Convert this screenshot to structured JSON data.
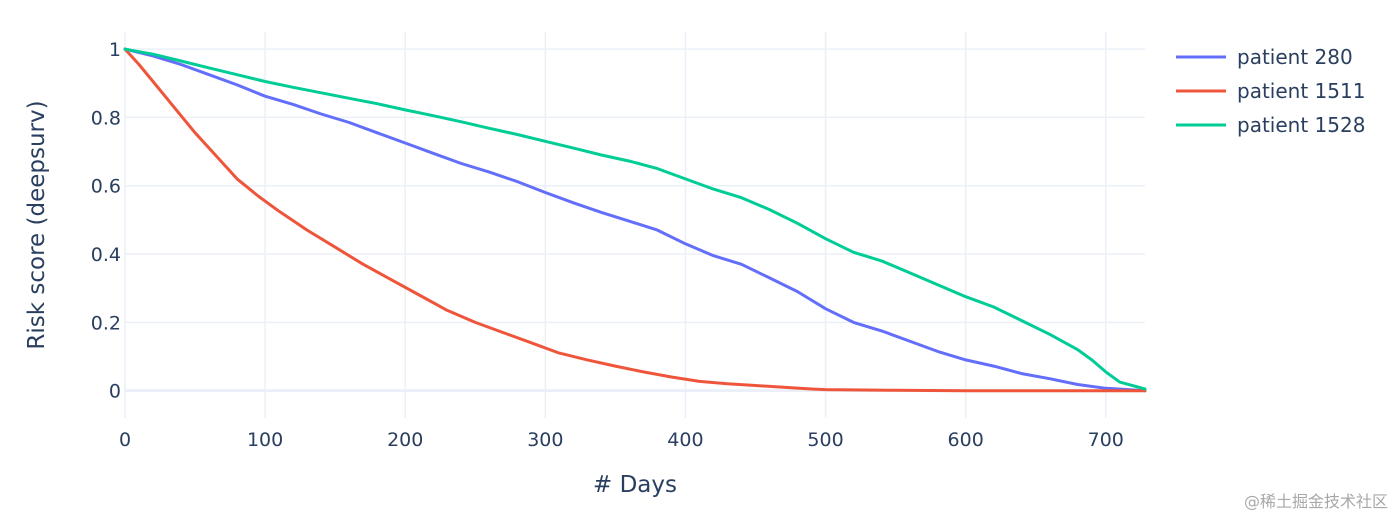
{
  "chart_data": {
    "type": "line",
    "xlabel": "# Days",
    "ylabel": "Risk score (deepsurv)",
    "xlim": [
      0,
      728
    ],
    "ylim": [
      -0.08,
      1.05
    ],
    "x_ticks": [
      0,
      100,
      200,
      300,
      400,
      500,
      600,
      700
    ],
    "y_ticks": [
      0,
      0.2,
      0.4,
      0.6,
      0.8,
      1
    ],
    "y_tick_labels": [
      "0",
      "0.2",
      "0.4",
      "0.6",
      "0.8",
      "1"
    ],
    "grid": true,
    "legend_position": "top-right",
    "series": [
      {
        "name": "patient 280",
        "color": "#636efa",
        "x": [
          0,
          20,
          40,
          60,
          80,
          100,
          120,
          140,
          160,
          180,
          200,
          220,
          240,
          260,
          280,
          300,
          320,
          340,
          360,
          380,
          400,
          420,
          440,
          460,
          480,
          500,
          520,
          540,
          560,
          580,
          600,
          620,
          640,
          660,
          680,
          700,
          728
        ],
        "y": [
          1.0,
          0.98,
          0.955,
          0.925,
          0.895,
          0.862,
          0.838,
          0.81,
          0.785,
          0.755,
          0.725,
          0.695,
          0.665,
          0.64,
          0.612,
          0.58,
          0.55,
          0.522,
          0.496,
          0.47,
          0.43,
          0.395,
          0.37,
          0.33,
          0.29,
          0.24,
          0.2,
          0.175,
          0.145,
          0.115,
          0.09,
          0.072,
          0.05,
          0.035,
          0.018,
          0.007,
          0.0
        ]
      },
      {
        "name": "patient 1511",
        "color": "#ef553b",
        "x": [
          0,
          10,
          20,
          30,
          40,
          50,
          60,
          70,
          80,
          95,
          110,
          130,
          150,
          170,
          190,
          210,
          230,
          250,
          270,
          290,
          310,
          330,
          350,
          370,
          390,
          410,
          430,
          450,
          470,
          490,
          500,
          550,
          600,
          650,
          728
        ],
        "y": [
          1.0,
          0.955,
          0.905,
          0.855,
          0.805,
          0.755,
          0.71,
          0.665,
          0.62,
          0.57,
          0.525,
          0.47,
          0.42,
          0.37,
          0.325,
          0.28,
          0.235,
          0.2,
          0.17,
          0.14,
          0.11,
          0.09,
          0.072,
          0.055,
          0.04,
          0.027,
          0.02,
          0.015,
          0.01,
          0.005,
          0.003,
          0.001,
          0.0,
          0.0,
          0.0
        ]
      },
      {
        "name": "patient 1528",
        "color": "#00cc96",
        "x": [
          0,
          20,
          40,
          60,
          80,
          100,
          120,
          140,
          160,
          180,
          200,
          220,
          240,
          260,
          280,
          300,
          320,
          340,
          360,
          380,
          400,
          420,
          440,
          460,
          480,
          500,
          520,
          540,
          560,
          580,
          600,
          620,
          640,
          660,
          680,
          690,
          700,
          710,
          728
        ],
        "y": [
          1.0,
          0.985,
          0.965,
          0.945,
          0.925,
          0.905,
          0.888,
          0.872,
          0.856,
          0.84,
          0.822,
          0.805,
          0.787,
          0.768,
          0.75,
          0.73,
          0.71,
          0.69,
          0.672,
          0.65,
          0.62,
          0.59,
          0.565,
          0.53,
          0.49,
          0.445,
          0.405,
          0.38,
          0.345,
          0.31,
          0.275,
          0.245,
          0.205,
          0.165,
          0.12,
          0.09,
          0.055,
          0.025,
          0.005
        ]
      }
    ]
  },
  "watermark": "@稀土掘金技术社区"
}
